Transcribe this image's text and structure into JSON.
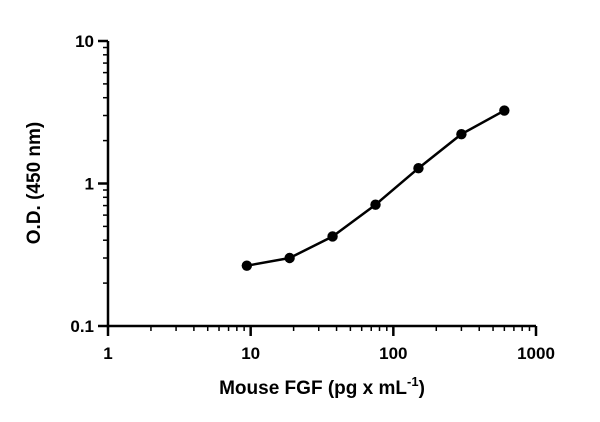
{
  "chart_data": {
    "type": "line",
    "title": "",
    "xlabel": "Mouse FGF (pg x mL",
    "xlabel_superscript": "-1",
    "xlabel_suffix": ")",
    "ylabel": "O.D. (450 nm)",
    "xscale": "log",
    "yscale": "log",
    "xlim": [
      1,
      1000
    ],
    "ylim": [
      0.1,
      10
    ],
    "x_ticks": [
      {
        "value": 1,
        "label": "1"
      },
      {
        "value": 10,
        "label": "10"
      },
      {
        "value": 100,
        "label": "100"
      },
      {
        "value": 1000,
        "label": "1000"
      }
    ],
    "y_ticks": [
      {
        "value": 0.1,
        "label": "0.1"
      },
      {
        "value": 1,
        "label": "1"
      },
      {
        "value": 10,
        "label": "10"
      }
    ],
    "grid": false,
    "legend": "none",
    "series": [
      {
        "color": "#000000",
        "marker": "circle",
        "x": [
          9.4,
          18.75,
          37.5,
          75,
          150,
          300,
          600
        ],
        "y": [
          0.265,
          0.3,
          0.425,
          0.71,
          1.28,
          2.22,
          3.25
        ]
      }
    ]
  }
}
